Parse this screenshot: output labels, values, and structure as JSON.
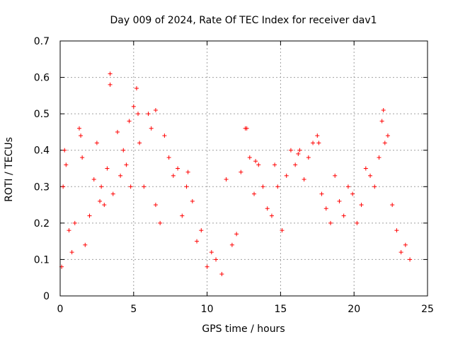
{
  "chart_data": {
    "type": "scatter",
    "title": "Day 009 of 2024, Rate Of TEC Index for receiver dav1",
    "xlabel": "GPS time / hours",
    "ylabel": "ROTI / TECUs",
    "xlim": [
      0,
      25
    ],
    "ylim": [
      0,
      0.7
    ],
    "xticks": [
      "0",
      "5",
      "10",
      "15",
      "20",
      "25"
    ],
    "yticks": [
      "0",
      "0.1",
      "0.2",
      "0.3",
      "0.4",
      "0.5",
      "0.6",
      "0.7"
    ],
    "grid": true,
    "marker": "plus",
    "color": "#ff0000",
    "series": [
      {
        "x": [
          0.1,
          0.3,
          0.4,
          0.6,
          0.8,
          1.0,
          1.3,
          1.5,
          1.7,
          2.0,
          2.3,
          2.5,
          2.8,
          3.0,
          3.2,
          3.4,
          3.6,
          3.9,
          4.1,
          4.3,
          4.5,
          4.7,
          5.0,
          5.2,
          5.4,
          5.7,
          6.0,
          6.2,
          6.5,
          6.8,
          7.1,
          7.4,
          7.7,
          8.0,
          8.3,
          8.6,
          9.0,
          9.3,
          9.6,
          10.0,
          10.3,
          10.6,
          11.0,
          11.3,
          11.7,
          12.0,
          12.3,
          12.6,
          12.9,
          13.2,
          13.5,
          13.8,
          14.1,
          14.4,
          14.8,
          15.1,
          15.4,
          15.7,
          16.0,
          16.3,
          16.6,
          16.9,
          17.2,
          17.5,
          17.8,
          18.1,
          18.4,
          18.7,
          19.0,
          19.3,
          19.6,
          19.9,
          20.2,
          20.5,
          20.8,
          21.1,
          21.4,
          21.7,
          22.0,
          22.3,
          22.6,
          22.9,
          23.2,
          23.5,
          23.8,
          0.2,
          1.4,
          3.4,
          5.3,
          6.5,
          12.7,
          13.3,
          16.2,
          17.6,
          21.9,
          22.1,
          4.8,
          8.7,
          2.7,
          14.6
        ],
        "y": [
          0.08,
          0.4,
          0.36,
          0.18,
          0.12,
          0.2,
          0.46,
          0.38,
          0.14,
          0.22,
          0.32,
          0.42,
          0.3,
          0.25,
          0.35,
          0.61,
          0.28,
          0.45,
          0.33,
          0.4,
          0.36,
          0.48,
          0.52,
          0.57,
          0.42,
          0.3,
          0.5,
          0.46,
          0.25,
          0.2,
          0.44,
          0.38,
          0.33,
          0.35,
          0.22,
          0.3,
          0.26,
          0.15,
          0.18,
          0.08,
          0.12,
          0.1,
          0.06,
          0.32,
          0.14,
          0.17,
          0.34,
          0.46,
          0.38,
          0.28,
          0.36,
          0.3,
          0.24,
          0.22,
          0.3,
          0.18,
          0.33,
          0.4,
          0.36,
          0.4,
          0.32,
          0.38,
          0.42,
          0.44,
          0.28,
          0.24,
          0.2,
          0.33,
          0.26,
          0.22,
          0.3,
          0.28,
          0.2,
          0.25,
          0.35,
          0.33,
          0.3,
          0.38,
          0.51,
          0.44,
          0.25,
          0.18,
          0.12,
          0.14,
          0.1,
          0.3,
          0.44,
          0.58,
          0.5,
          0.51,
          0.46,
          0.37,
          0.39,
          0.42,
          0.48,
          0.42,
          0.3,
          0.34,
          0.26,
          0.36
        ]
      }
    ]
  }
}
